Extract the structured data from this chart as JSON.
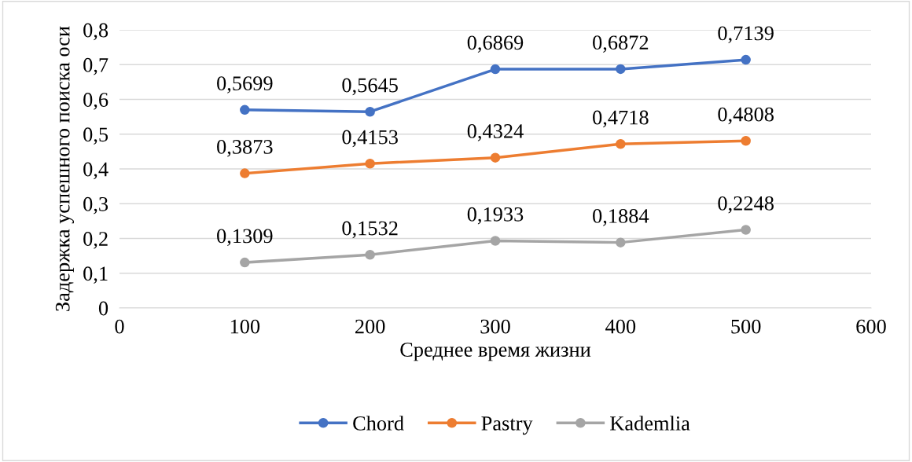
{
  "chart_data": {
    "type": "scatter",
    "xlabel": "Среднее время жизни",
    "ylabel": "Задержка успешного поиска оси",
    "x": [
      100,
      200,
      300,
      400,
      500
    ],
    "series": [
      {
        "name": "Chord",
        "color": "#4472c4",
        "values": [
          0.5699,
          0.5645,
          0.6869,
          0.6872,
          0.7139
        ],
        "value_labels": [
          "0,5699",
          "0,5645",
          "0,6869",
          "0,6872",
          "0,7139"
        ]
      },
      {
        "name": "Pastry",
        "color": "#ed7d31",
        "values": [
          0.3873,
          0.4153,
          0.4324,
          0.4718,
          0.4808
        ],
        "value_labels": [
          "0,3873",
          "0,4153",
          "0,4324",
          "0,4718",
          "0,4808"
        ]
      },
      {
        "name": "Kademlia",
        "color": "#a5a5a5",
        "values": [
          0.1309,
          0.1532,
          0.1933,
          0.1884,
          0.2248
        ],
        "value_labels": [
          "0,1309",
          "0,1532",
          "0,1933",
          "0,1884",
          "0,2248"
        ]
      }
    ],
    "xlim": [
      0,
      600
    ],
    "xticks": [
      0,
      100,
      200,
      300,
      400,
      500,
      600
    ],
    "ylim": [
      0,
      0.8
    ],
    "yticks": [
      0,
      {
        "value": 0.1,
        "label": "0,1"
      },
      {
        "value": 0.2,
        "label": "0,2"
      },
      {
        "value": 0.3,
        "label": "0,3"
      },
      {
        "value": 0.4,
        "label": "0,4"
      },
      {
        "value": 0.5,
        "label": "0,5"
      },
      {
        "value": 0.6,
        "label": "0,6"
      },
      {
        "value": 0.7,
        "label": "0,7"
      },
      {
        "value": 0.8,
        "label": "0,8"
      }
    ],
    "grid": "y",
    "legend": "bottom",
    "marker": "circle",
    "line_style": "solid"
  }
}
